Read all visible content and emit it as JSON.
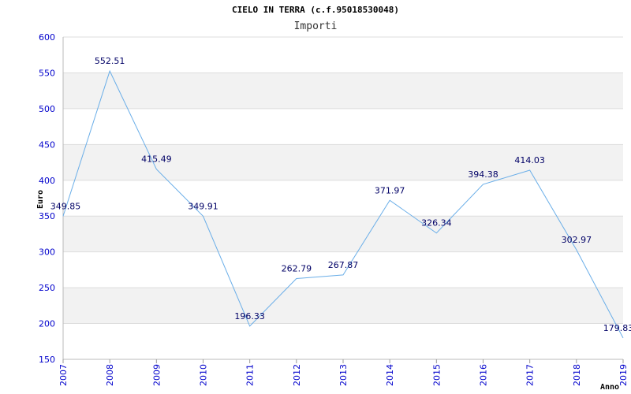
{
  "chart_data": {
    "type": "line",
    "title": "CIELO IN TERRA (c.f.95018530048)",
    "subtitle": "Importi",
    "xlabel": "Anno",
    "ylabel": "Euro",
    "ylim": [
      150,
      600
    ],
    "yticks": [
      150,
      200,
      250,
      300,
      350,
      400,
      450,
      500,
      550,
      600
    ],
    "categories": [
      "2007",
      "2008",
      "2009",
      "2010",
      "2011",
      "2012",
      "2013",
      "2014",
      "2015",
      "2016",
      "2017",
      "2018",
      "2019"
    ],
    "values": [
      349.85,
      552.51,
      415.49,
      349.91,
      196.33,
      262.79,
      267.87,
      371.97,
      326.34,
      394.38,
      414.03,
      302.97,
      179.83
    ],
    "value_labels": [
      "349.85",
      "552.51",
      "415.49",
      "349.91",
      "196.33",
      "262.79",
      "267.87",
      "371.97",
      "326.34",
      "394.38",
      "414.03",
      "302.97",
      "179.83"
    ],
    "grid": true,
    "line_color": "#6aaee8",
    "band_color": "#f2f2f2",
    "tick_color": "#0000cc",
    "label_color": "#000066"
  }
}
